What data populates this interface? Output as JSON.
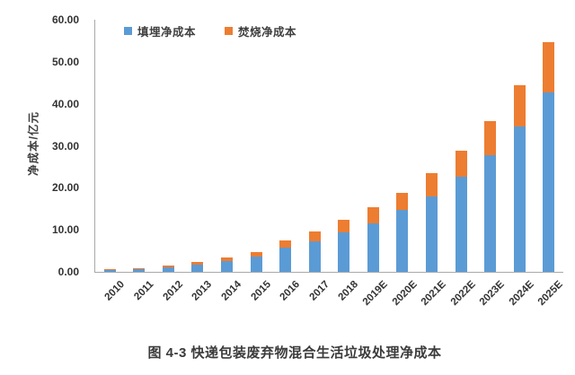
{
  "figure": {
    "caption": "图 4-3 快递包装废弃物混合生活垃圾处理净成本"
  },
  "chart_data": {
    "type": "bar",
    "stacked": true,
    "title": "",
    "ylabel": "净成本/亿元",
    "xlabel": "",
    "ylim": [
      0,
      60
    ],
    "ytick_labels": [
      "60.00",
      "50.00",
      "40.00",
      "30.00",
      "20.00",
      "10.00",
      "0.00"
    ],
    "grid": false,
    "legend_position": "top-left-of-plot",
    "axis_line_color": "#a9a9a9",
    "categories": [
      "2010",
      "2011",
      "2012",
      "2013",
      "2014",
      "2015",
      "2016",
      "2017",
      "2018",
      "2019E",
      "2020E",
      "2021E",
      "2022E",
      "2023E",
      "2024E",
      "2025E"
    ],
    "series": [
      {
        "name": "填埋净成本",
        "color": "#5B9BD5",
        "values": [
          0.4,
          0.7,
          1.1,
          1.8,
          2.6,
          3.6,
          5.8,
          7.2,
          9.4,
          11.6,
          14.7,
          18.0,
          22.6,
          27.8,
          34.6,
          42.8
        ]
      },
      {
        "name": "焚烧净成本",
        "color": "#ED7D31",
        "values": [
          0.15,
          0.2,
          0.3,
          0.55,
          0.85,
          1.2,
          1.6,
          2.4,
          3.0,
          3.7,
          4.2,
          5.4,
          6.3,
          8.0,
          9.8,
          11.9
        ]
      }
    ],
    "totals": [
      0.55,
      0.9,
      1.4,
      2.35,
      3.45,
      4.8,
      7.4,
      9.6,
      12.4,
      15.3,
      18.9,
      23.4,
      28.9,
      35.8,
      44.4,
      54.7
    ]
  }
}
